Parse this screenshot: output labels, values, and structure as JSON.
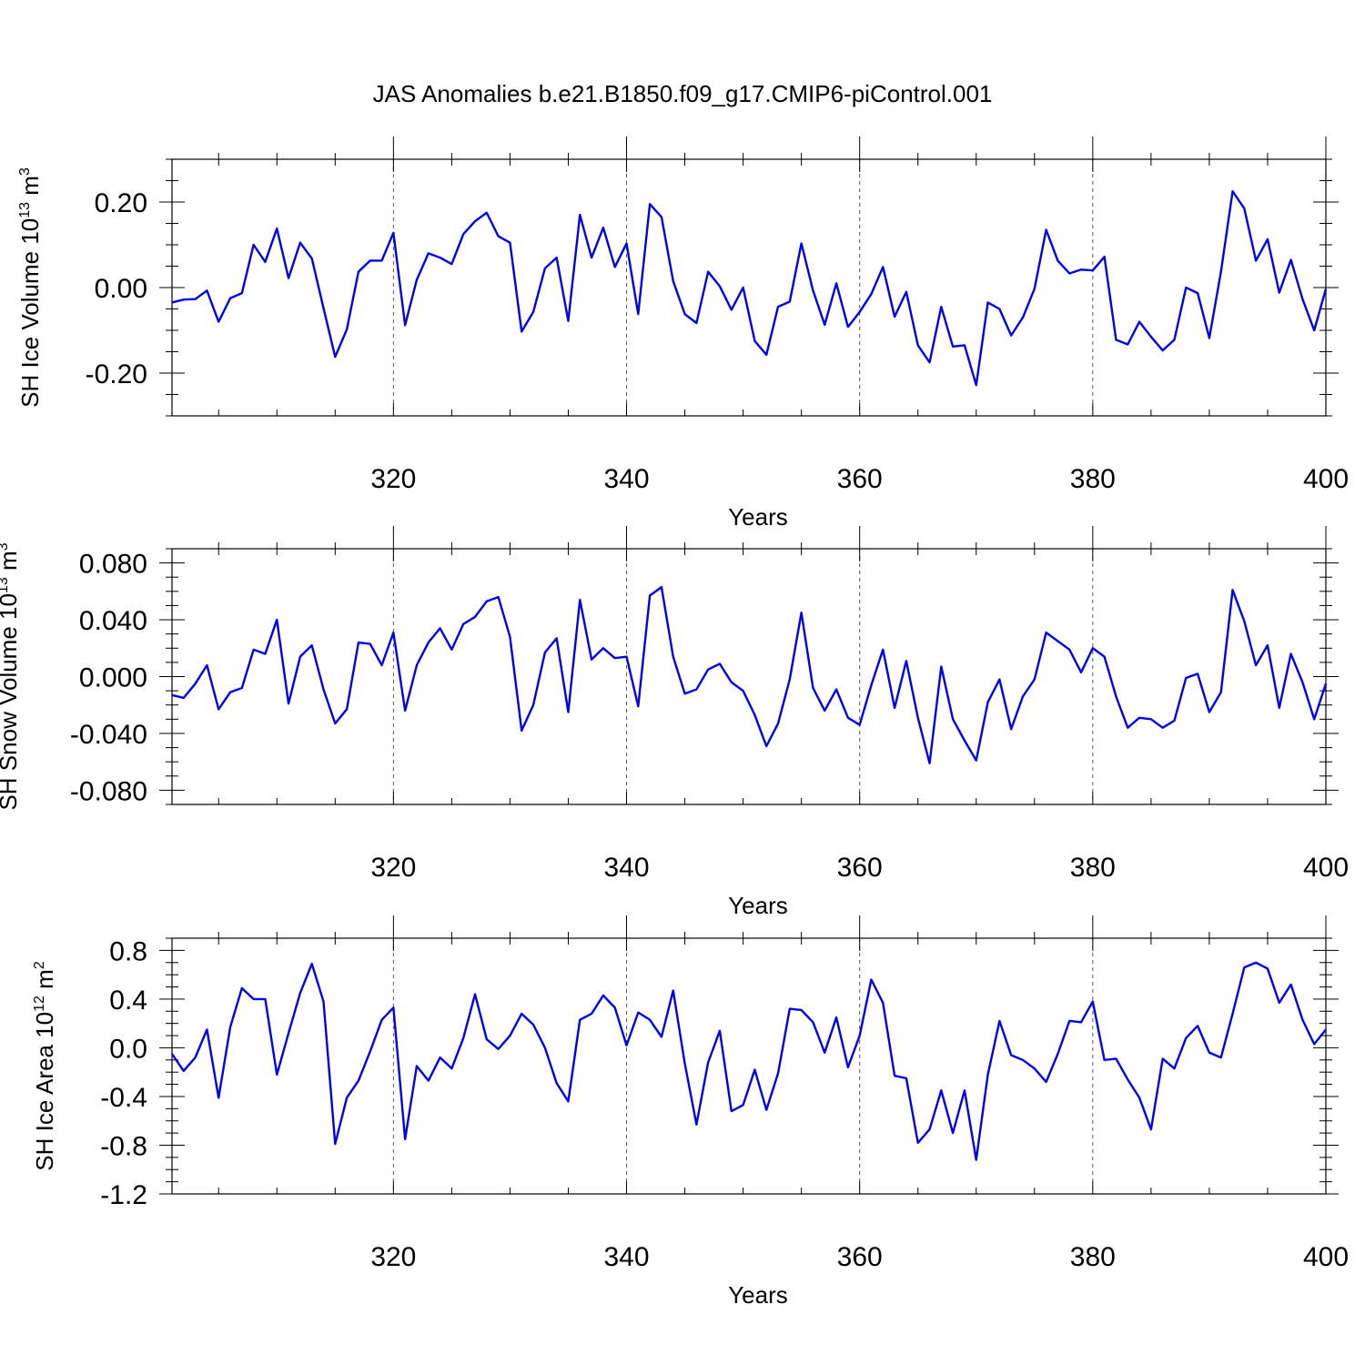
{
  "title": "JAS Anomalies b.e21.B1850.f09_g17.CMIP6-piControl.001",
  "colors": {
    "line": "#0000ee",
    "axis": "#000000",
    "grid": "#555555"
  },
  "chart_data": [
    {
      "type": "line",
      "id": "ice-volume",
      "xlabel": "Years",
      "ylabel_text": "SH Ice Volume 10",
      "ylabel_exponent": "13",
      "ylabel_unit": " m",
      "ylabel_unit_exponent": "3",
      "xlim": [
        301,
        400
      ],
      "ylim": [
        -0.3,
        0.3
      ],
      "xticks": [
        320,
        340,
        360,
        380,
        400
      ],
      "xtick_labels": [
        "320",
        "340",
        "360",
        "380",
        "400"
      ],
      "yticks": [
        -0.2,
        0.0,
        0.2
      ],
      "ytick_labels": [
        "-0.20",
        "0.00",
        "0.20"
      ],
      "yminor_step": 0.05,
      "grid_x": [
        320,
        340,
        360,
        380
      ],
      "x_start": 301,
      "series": [
        {
          "name": "SH Ice Volume",
          "values": [
            -0.035,
            -0.028,
            -0.027,
            -0.007,
            -0.08,
            -0.025,
            -0.013,
            0.1,
            0.06,
            0.138,
            0.022,
            0.105,
            0.068,
            -0.048,
            -0.162,
            -0.098,
            0.037,
            0.063,
            0.063,
            0.128,
            -0.088,
            0.018,
            0.08,
            0.07,
            0.055,
            0.125,
            0.155,
            0.175,
            0.12,
            0.105,
            -0.103,
            -0.057,
            0.045,
            0.07,
            -0.078,
            0.17,
            0.07,
            0.14,
            0.048,
            0.103,
            -0.062,
            0.195,
            0.165,
            0.015,
            -0.062,
            -0.083,
            0.037,
            0.003,
            -0.052,
            0.0,
            -0.125,
            -0.157,
            -0.045,
            -0.033,
            0.103,
            -0.007,
            -0.087,
            0.01,
            -0.092,
            -0.057,
            -0.015,
            0.048,
            -0.068,
            -0.01,
            -0.135,
            -0.175,
            -0.045,
            -0.138,
            -0.135,
            -0.228,
            -0.035,
            -0.05,
            -0.112,
            -0.07,
            -0.003,
            0.135,
            0.063,
            0.033,
            0.042,
            0.04,
            0.072,
            -0.122,
            -0.133,
            -0.08,
            -0.115,
            -0.147,
            -0.122,
            0.0,
            -0.013,
            -0.118,
            0.037,
            0.225,
            0.185,
            0.063,
            0.113,
            -0.012,
            0.065,
            -0.027,
            -0.1,
            -0.003
          ]
        }
      ]
    },
    {
      "type": "line",
      "id": "snow-volume",
      "xlabel": "Years",
      "ylabel_text": "SH Snow Volume 10",
      "ylabel_exponent": "13",
      "ylabel_unit": " m",
      "ylabel_unit_exponent": "3",
      "xlim": [
        301,
        400
      ],
      "ylim": [
        -0.09,
        0.09
      ],
      "xticks": [
        320,
        340,
        360,
        380,
        400
      ],
      "xtick_labels": [
        "320",
        "340",
        "360",
        "380",
        "400"
      ],
      "yticks": [
        -0.08,
        -0.04,
        0.0,
        0.04,
        0.08
      ],
      "ytick_labels": [
        "-0.080",
        "-0.040",
        "0.000",
        "0.040",
        "0.080"
      ],
      "yminor_step": 0.01,
      "grid_x": [
        320,
        340,
        360,
        380
      ],
      "x_start": 301,
      "series": [
        {
          "name": "SH Snow Volume",
          "values": [
            -0.013,
            -0.015,
            -0.005,
            0.008,
            -0.023,
            -0.011,
            -0.008,
            0.019,
            0.016,
            0.04,
            -0.019,
            0.014,
            0.022,
            -0.009,
            -0.033,
            -0.023,
            0.024,
            0.023,
            0.008,
            0.031,
            -0.024,
            0.008,
            0.024,
            0.034,
            0.019,
            0.037,
            0.042,
            0.053,
            0.056,
            0.028,
            -0.038,
            -0.02,
            0.017,
            0.027,
            -0.025,
            0.054,
            0.012,
            0.02,
            0.013,
            0.014,
            -0.021,
            0.057,
            0.063,
            0.014,
            -0.012,
            -0.009,
            0.005,
            0.009,
            -0.004,
            -0.01,
            -0.027,
            -0.049,
            -0.033,
            -0.002,
            0.045,
            -0.008,
            -0.024,
            -0.009,
            -0.029,
            -0.034,
            -0.006,
            0.019,
            -0.022,
            0.011,
            -0.029,
            -0.061,
            0.007,
            -0.03,
            -0.045,
            -0.059,
            -0.018,
            -0.002,
            -0.037,
            -0.014,
            -0.002,
            0.031,
            0.025,
            0.019,
            0.003,
            0.02,
            0.014,
            -0.014,
            -0.036,
            -0.029,
            -0.03,
            -0.036,
            -0.031,
            -0.001,
            0.002,
            -0.025,
            -0.011,
            0.061,
            0.039,
            0.008,
            0.022,
            -0.022,
            0.016,
            -0.004,
            -0.03,
            -0.005
          ]
        }
      ]
    },
    {
      "type": "line",
      "id": "ice-area",
      "xlabel": "Years",
      "ylabel_text": "SH Ice Area 10",
      "ylabel_exponent": "12",
      "ylabel_unit": " m",
      "ylabel_unit_exponent": "2",
      "xlim": [
        301,
        400
      ],
      "ylim": [
        -1.2,
        0.9
      ],
      "xticks": [
        320,
        340,
        360,
        380,
        400
      ],
      "xtick_labels": [
        "320",
        "340",
        "360",
        "380",
        "400"
      ],
      "yticks": [
        -1.2,
        -0.8,
        -0.4,
        0.0,
        0.4,
        0.8
      ],
      "ytick_labels": [
        "-1.2",
        "-0.8",
        "-0.4",
        "0.0",
        "0.4",
        "0.8"
      ],
      "yminor_step": 0.1,
      "grid_x": [
        320,
        340,
        360,
        380
      ],
      "x_start": 301,
      "series": [
        {
          "name": "SH Ice Area",
          "values": [
            -0.05,
            -0.19,
            -0.08,
            0.15,
            -0.41,
            0.17,
            0.49,
            0.4,
            0.4,
            -0.22,
            0.12,
            0.45,
            0.69,
            0.38,
            -0.79,
            -0.41,
            -0.27,
            -0.03,
            0.23,
            0.33,
            -0.75,
            -0.15,
            -0.27,
            -0.08,
            -0.17,
            0.08,
            0.44,
            0.07,
            -0.01,
            0.1,
            0.28,
            0.19,
            0.0,
            -0.29,
            -0.44,
            0.23,
            0.28,
            0.43,
            0.33,
            0.02,
            0.29,
            0.23,
            0.09,
            0.47,
            -0.13,
            -0.63,
            -0.12,
            0.14,
            -0.52,
            -0.47,
            -0.18,
            -0.51,
            -0.21,
            0.32,
            0.31,
            0.21,
            -0.04,
            0.25,
            -0.16,
            0.1,
            0.56,
            0.37,
            -0.23,
            -0.25,
            -0.78,
            -0.67,
            -0.35,
            -0.7,
            -0.35,
            -0.92,
            -0.22,
            0.22,
            -0.06,
            -0.1,
            -0.17,
            -0.28,
            -0.05,
            0.22,
            0.21,
            0.38,
            -0.1,
            -0.09,
            -0.26,
            -0.41,
            -0.67,
            -0.09,
            -0.17,
            0.08,
            0.18,
            -0.04,
            -0.08,
            0.28,
            0.66,
            0.7,
            0.65,
            0.37,
            0.52,
            0.23,
            0.03,
            0.15
          ]
        }
      ]
    }
  ]
}
